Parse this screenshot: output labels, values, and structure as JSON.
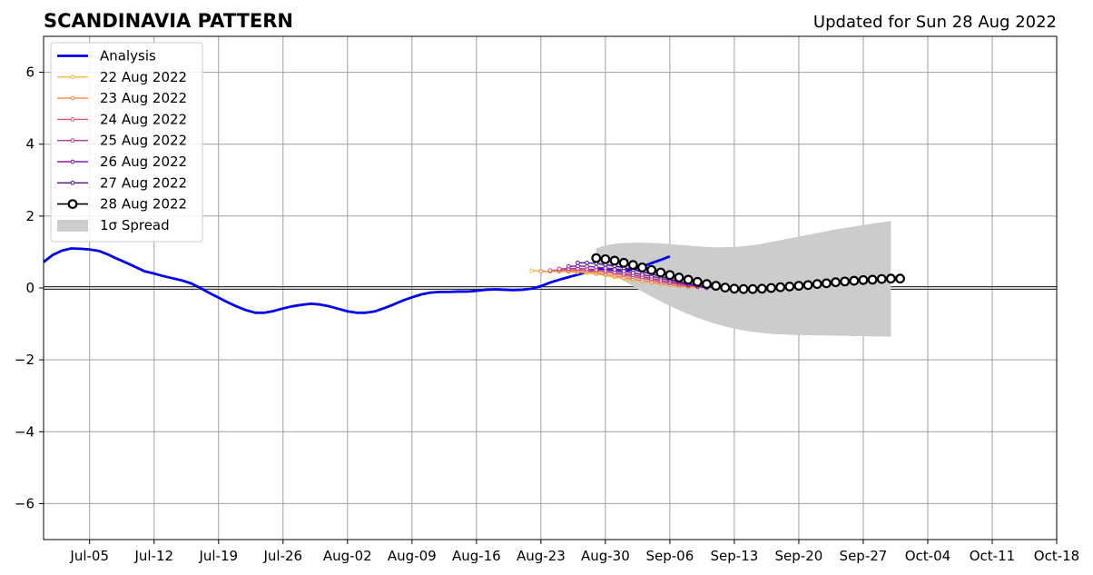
{
  "header": {
    "title": "SCANDINAVIA PATTERN",
    "updated": "Updated for Sun 28 Aug 2022"
  },
  "chart_data": {
    "type": "line",
    "title": "SCANDINAVIA PATTERN",
    "subtitle": "Updated for Sun 28 Aug 2022",
    "xlabel": "",
    "ylabel": "",
    "xlim": [
      "2022-06-30",
      "2022-10-18"
    ],
    "ylim": [
      -7,
      7
    ],
    "grid": true,
    "legend_position": "top-left",
    "x_ticks": [
      "Jul-05",
      "Jul-12",
      "Jul-19",
      "Jul-26",
      "Aug-02",
      "Aug-09",
      "Aug-16",
      "Aug-23",
      "Aug-30",
      "Sep-06",
      "Sep-13",
      "Sep-20",
      "Sep-27",
      "Oct-04",
      "Oct-11",
      "Oct-18"
    ],
    "y_ticks": [
      -6,
      -4,
      -2,
      0,
      2,
      4,
      6
    ],
    "analysis": {
      "name": "Analysis",
      "color": "#0000ee",
      "start_date": "2022-06-30",
      "values": [
        0.72,
        0.92,
        1.04,
        1.1,
        1.09,
        1.07,
        1.03,
        0.93,
        0.81,
        0.7,
        0.58,
        0.46,
        0.4,
        0.33,
        0.27,
        0.21,
        0.13,
        0.0,
        -0.14,
        -0.27,
        -0.4,
        -0.52,
        -0.62,
        -0.69,
        -0.69,
        -0.64,
        -0.57,
        -0.51,
        -0.47,
        -0.44,
        -0.46,
        -0.51,
        -0.58,
        -0.65,
        -0.69,
        -0.69,
        -0.65,
        -0.56,
        -0.46,
        -0.35,
        -0.26,
        -0.18,
        -0.13,
        -0.11,
        -0.11,
        -0.1,
        -0.1,
        -0.08,
        -0.05,
        -0.04,
        -0.05,
        -0.06,
        -0.05,
        -0.02,
        0.05,
        0.15,
        0.23,
        0.3,
        0.37,
        0.45,
        0.51,
        0.53,
        0.51,
        0.47,
        0.52,
        0.6,
        0.69,
        0.78,
        0.88
      ]
    },
    "forecasts": [
      {
        "name": "22 Aug 2022",
        "color": "#f9b53c",
        "start_date": "2022-08-22",
        "values": [
          0.48,
          0.47,
          0.46,
          0.46,
          0.45,
          0.44,
          0.42,
          0.39,
          0.35,
          0.3,
          0.26,
          0.22,
          0.19,
          0.15,
          0.11,
          0.08,
          0.05,
          0.03,
          0.03,
          0.04,
          0.05,
          0.06
        ]
      },
      {
        "name": "23 Aug 2022",
        "color": "#f08a46",
        "start_date": "2022-08-23",
        "values": [
          0.46,
          0.46,
          0.47,
          0.47,
          0.46,
          0.45,
          0.42,
          0.38,
          0.34,
          0.29,
          0.25,
          0.2,
          0.16,
          0.12,
          0.08,
          0.05,
          0.03,
          0.02
        ]
      },
      {
        "name": "24 Aug 2022",
        "color": "#dc5a6b",
        "start_date": "2022-08-24",
        "values": [
          0.49,
          0.5,
          0.5,
          0.5,
          0.49,
          0.47,
          0.44,
          0.4,
          0.36,
          0.31,
          0.27,
          0.22,
          0.17,
          0.13,
          0.09,
          0.05
        ]
      },
      {
        "name": "25 Aug 2022",
        "color": "#b5388f",
        "start_date": "2022-08-25",
        "values": [
          0.53,
          0.54,
          0.54,
          0.53,
          0.51,
          0.48,
          0.44,
          0.4,
          0.36,
          0.31,
          0.26,
          0.21,
          0.16,
          0.12,
          0.08
        ]
      },
      {
        "name": "26 Aug 2022",
        "color": "#8a1fa6",
        "start_date": "2022-08-26",
        "values": [
          0.6,
          0.61,
          0.6,
          0.58,
          0.55,
          0.51,
          0.47,
          0.42,
          0.37,
          0.32,
          0.27,
          0.21,
          0.15,
          0.09,
          0.04,
          0.0
        ]
      },
      {
        "name": "27 Aug 2022",
        "color": "#4f138c",
        "start_date": "2022-08-27",
        "values": [
          0.7,
          0.7,
          0.68,
          0.65,
          0.61,
          0.56,
          0.51,
          0.45,
          0.39,
          0.32,
          0.25,
          0.18,
          0.12,
          0.07,
          0.03,
          0.0
        ]
      }
    ],
    "latest_forecast": {
      "name": "28 Aug 2022",
      "color": "#000000",
      "start_date": "2022-08-29",
      "values": [
        0.83,
        0.8,
        0.76,
        0.7,
        0.64,
        0.57,
        0.5,
        0.43,
        0.36,
        0.29,
        0.23,
        0.17,
        0.11,
        0.06,
        0.01,
        -0.02,
        -0.03,
        -0.03,
        -0.02,
        0.0,
        0.02,
        0.04,
        0.06,
        0.08,
        0.11,
        0.13,
        0.16,
        0.18,
        0.2,
        0.22,
        0.23,
        0.25,
        0.26,
        0.26
      ]
    },
    "spread": {
      "name": "1σ Spread",
      "color": "#cccccc",
      "start_date": "2022-08-29",
      "upper": [
        1.1,
        1.18,
        1.23,
        1.25,
        1.26,
        1.26,
        1.25,
        1.24,
        1.22,
        1.2,
        1.18,
        1.16,
        1.14,
        1.13,
        1.13,
        1.14,
        1.16,
        1.19,
        1.23,
        1.28,
        1.33,
        1.38,
        1.43,
        1.48,
        1.53,
        1.58,
        1.63,
        1.67,
        1.71,
        1.75,
        1.79,
        1.83,
        1.86
      ],
      "lower": [
        0.7,
        0.53,
        0.36,
        0.2,
        0.04,
        -0.1,
        -0.24,
        -0.37,
        -0.5,
        -0.62,
        -0.73,
        -0.83,
        -0.92,
        -1.0,
        -1.07,
        -1.13,
        -1.18,
        -1.22,
        -1.25,
        -1.28,
        -1.29,
        -1.3,
        -1.31,
        -1.31,
        -1.32,
        -1.32,
        -1.33,
        -1.33,
        -1.34,
        -1.34,
        -1.35,
        -1.35,
        -1.36
      ]
    }
  }
}
